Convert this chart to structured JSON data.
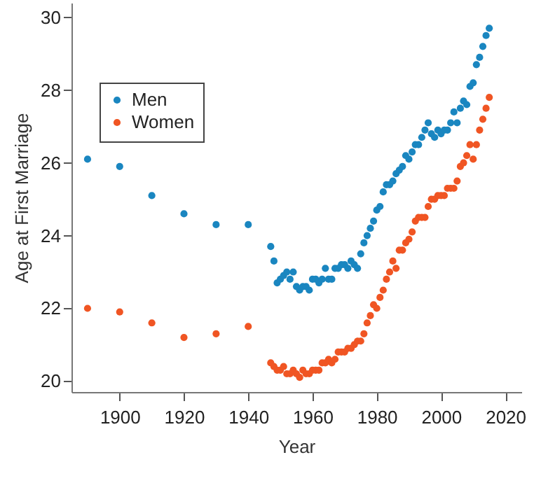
{
  "chart_data": {
    "type": "scatter",
    "xlabel": "Year",
    "ylabel": "Age at First Marriage",
    "xlim": [
      1885,
      2025
    ],
    "xticks": [
      1900,
      1920,
      1940,
      1960,
      1980,
      2000,
      2020
    ],
    "ylim": [
      19.7,
      30.4
    ],
    "yticks": [
      20,
      22,
      24,
      26,
      28,
      30
    ],
    "grid": false,
    "legend": "top left",
    "marker": "circle",
    "series": [
      {
        "name": "Men",
        "color": "#1a86c0",
        "x": [
          1890,
          1900,
          1910,
          1920,
          1930,
          1940,
          1947,
          1948,
          1949,
          1950,
          1951,
          1952,
          1953,
          1954,
          1955,
          1956,
          1957,
          1958,
          1959,
          1960,
          1961,
          1962,
          1963,
          1964,
          1965,
          1966,
          1967,
          1968,
          1969,
          1970,
          1971,
          1972,
          1973,
          1974,
          1975,
          1976,
          1977,
          1978,
          1979,
          1980,
          1981,
          1982,
          1983,
          1984,
          1985,
          1986,
          1987,
          1988,
          1989,
          1990,
          1991,
          1992,
          1993,
          1994,
          1995,
          1996,
          1997,
          1998,
          1999,
          2000,
          2001,
          2002,
          2003,
          2004,
          2005,
          2006,
          2007,
          2008,
          2009,
          2010,
          2011,
          2012,
          2013,
          2014,
          2015
        ],
        "values": [
          26.1,
          25.9,
          25.1,
          24.6,
          24.3,
          24.3,
          23.7,
          23.3,
          22.7,
          22.8,
          22.9,
          23.0,
          22.8,
          23.0,
          22.6,
          22.5,
          22.6,
          22.6,
          22.5,
          22.8,
          22.8,
          22.7,
          22.8,
          23.1,
          22.8,
          22.8,
          23.1,
          23.1,
          23.2,
          23.2,
          23.1,
          23.3,
          23.2,
          23.1,
          23.5,
          23.8,
          24.0,
          24.2,
          24.4,
          24.7,
          24.8,
          25.2,
          25.4,
          25.4,
          25.5,
          25.7,
          25.8,
          25.9,
          26.2,
          26.1,
          26.3,
          26.5,
          26.5,
          26.7,
          26.9,
          27.1,
          26.8,
          26.7,
          26.9,
          26.8,
          26.9,
          26.9,
          27.1,
          27.4,
          27.1,
          27.5,
          27.7,
          27.6,
          28.1,
          28.2,
          28.7,
          28.9,
          29.2,
          29.5,
          29.7
        ]
      },
      {
        "name": "Women",
        "color": "#f05523",
        "x": [
          1890,
          1900,
          1910,
          1920,
          1930,
          1940,
          1947,
          1948,
          1949,
          1950,
          1951,
          1952,
          1953,
          1954,
          1955,
          1956,
          1957,
          1958,
          1959,
          1960,
          1961,
          1962,
          1963,
          1964,
          1965,
          1966,
          1967,
          1968,
          1969,
          1970,
          1971,
          1972,
          1973,
          1974,
          1975,
          1976,
          1977,
          1978,
          1979,
          1980,
          1981,
          1982,
          1983,
          1984,
          1985,
          1986,
          1987,
          1988,
          1989,
          1990,
          1991,
          1992,
          1993,
          1994,
          1995,
          1996,
          1997,
          1998,
          1999,
          2000,
          2001,
          2002,
          2003,
          2004,
          2005,
          2006,
          2007,
          2008,
          2009,
          2010,
          2011,
          2012,
          2013,
          2014,
          2015
        ],
        "values": [
          22.0,
          21.9,
          21.6,
          21.2,
          21.3,
          21.5,
          20.5,
          20.4,
          20.3,
          20.3,
          20.4,
          20.2,
          20.2,
          20.3,
          20.2,
          20.1,
          20.3,
          20.2,
          20.2,
          20.3,
          20.3,
          20.3,
          20.5,
          20.5,
          20.6,
          20.5,
          20.6,
          20.8,
          20.8,
          20.8,
          20.9,
          20.9,
          21.0,
          21.1,
          21.1,
          21.3,
          21.6,
          21.8,
          22.1,
          22.0,
          22.3,
          22.5,
          22.8,
          23.0,
          23.3,
          23.1,
          23.6,
          23.6,
          23.8,
          23.9,
          24.1,
          24.4,
          24.5,
          24.5,
          24.5,
          24.8,
          25.0,
          25.0,
          25.1,
          25.1,
          25.1,
          25.3,
          25.3,
          25.3,
          25.5,
          25.9,
          26.0,
          26.2,
          26.5,
          26.1,
          26.5,
          26.9,
          27.2,
          27.5,
          27.8
        ]
      }
    ]
  }
}
